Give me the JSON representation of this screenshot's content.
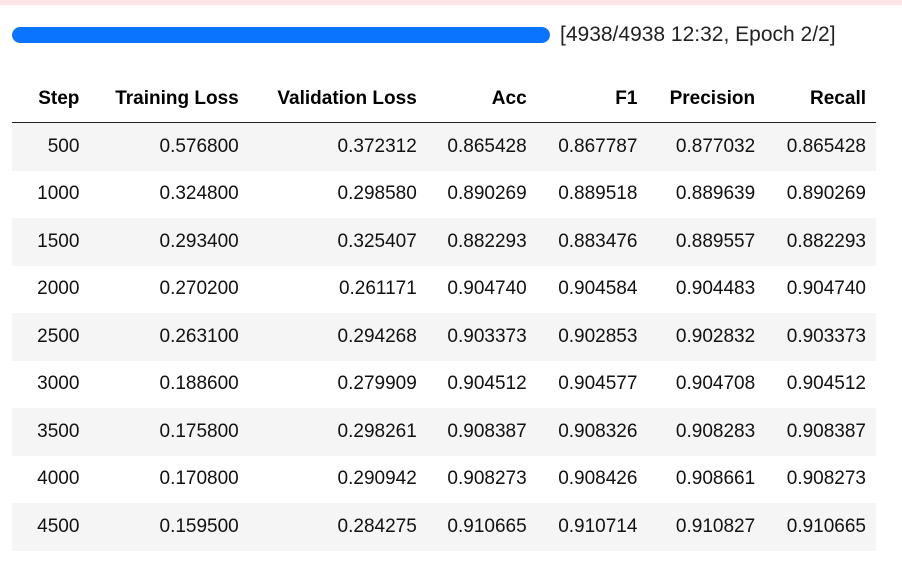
{
  "progress": {
    "fraction": 1.0,
    "status_text": "[4938/4938 12:32, Epoch 2/2]",
    "bar_color": "#0a74ff"
  },
  "table": {
    "columns": [
      "Step",
      "Training Loss",
      "Validation Loss",
      "Acc",
      "F1",
      "Precision",
      "Recall"
    ],
    "rows": [
      [
        "500",
        "0.576800",
        "0.372312",
        "0.865428",
        "0.867787",
        "0.877032",
        "0.865428"
      ],
      [
        "1000",
        "0.324800",
        "0.298580",
        "0.890269",
        "0.889518",
        "0.889639",
        "0.890269"
      ],
      [
        "1500",
        "0.293400",
        "0.325407",
        "0.882293",
        "0.883476",
        "0.889557",
        "0.882293"
      ],
      [
        "2000",
        "0.270200",
        "0.261171",
        "0.904740",
        "0.904584",
        "0.904483",
        "0.904740"
      ],
      [
        "2500",
        "0.263100",
        "0.294268",
        "0.903373",
        "0.902853",
        "0.902832",
        "0.903373"
      ],
      [
        "3000",
        "0.188600",
        "0.279909",
        "0.904512",
        "0.904577",
        "0.904708",
        "0.904512"
      ],
      [
        "3500",
        "0.175800",
        "0.298261",
        "0.908387",
        "0.908326",
        "0.908283",
        "0.908387"
      ],
      [
        "4000",
        "0.170800",
        "0.290942",
        "0.908273",
        "0.908426",
        "0.908661",
        "0.908273"
      ],
      [
        "4500",
        "0.159500",
        "0.284275",
        "0.910665",
        "0.910714",
        "0.910827",
        "0.910665"
      ]
    ]
  }
}
